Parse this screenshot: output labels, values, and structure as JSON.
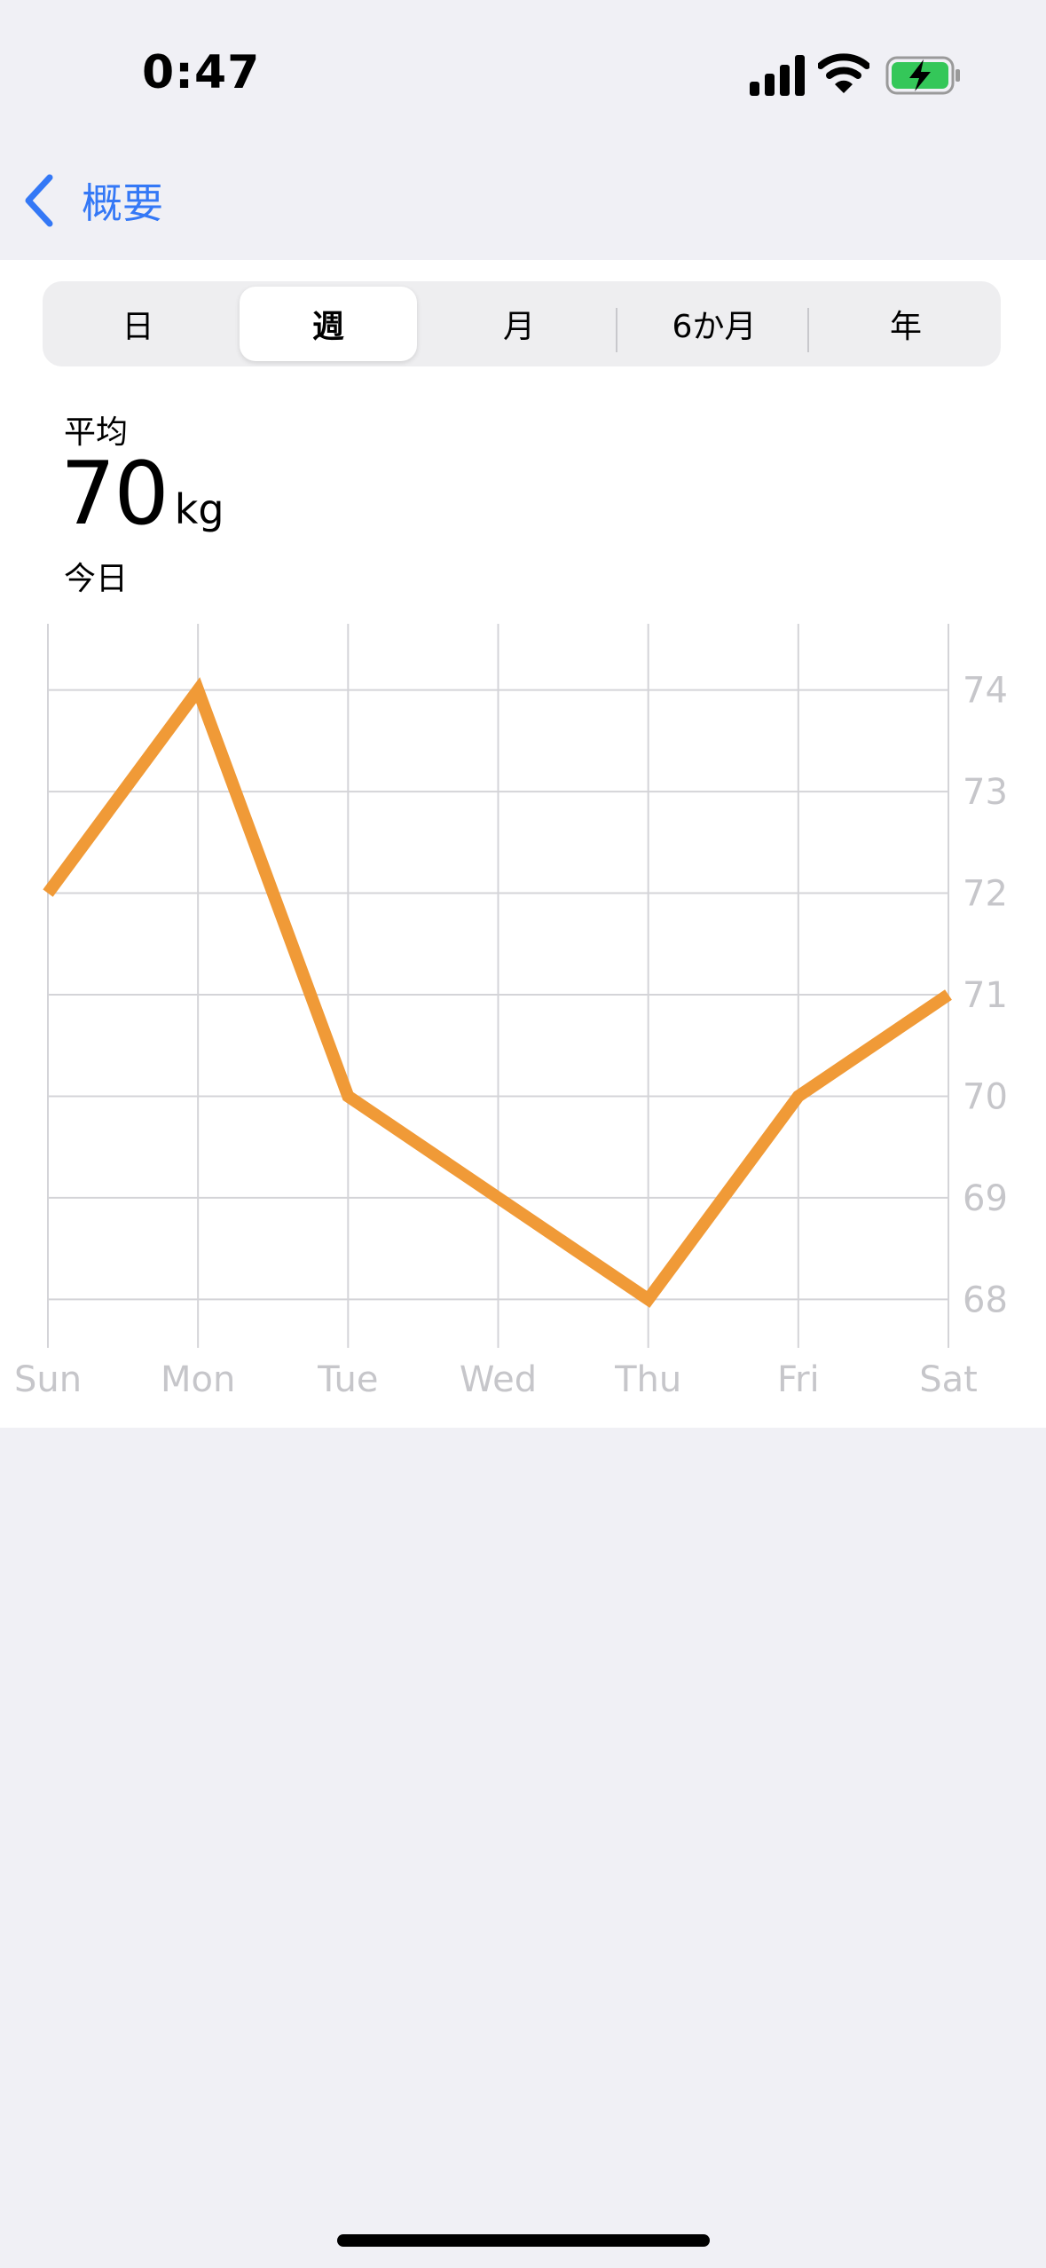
{
  "status_bar": {
    "time": "0:47",
    "signal_icon": "cellular-signal-icon",
    "wifi_icon": "wifi-icon",
    "battery_icon": "battery-charging-icon",
    "battery_color": "#34C759"
  },
  "nav": {
    "back_label": "概要",
    "accent": "#3478F6"
  },
  "segments": [
    {
      "label": "日",
      "selected": false
    },
    {
      "label": "週",
      "selected": true
    },
    {
      "label": "月",
      "selected": false
    },
    {
      "label": "6か月",
      "selected": false
    },
    {
      "label": "年",
      "selected": false
    }
  ],
  "summary": {
    "label": "平均",
    "value": "70",
    "unit": "kg",
    "date": "今日"
  },
  "chart_data": {
    "type": "line",
    "categories": [
      "Sun",
      "Mon",
      "Tue",
      "Wed",
      "Thu",
      "Fri",
      "Sat"
    ],
    "series": [
      {
        "color": "#F09A37",
        "values": [
          72,
          74,
          70,
          69,
          68,
          70,
          71
        ]
      }
    ],
    "y_ticks": [
      "74",
      "73",
      "72",
      "71",
      "70",
      "69",
      "68"
    ],
    "ylim": [
      67.4,
      74.6
    ],
    "y_axis_position": "right",
    "grid": true,
    "title": "",
    "xlabel": "",
    "ylabel": ""
  }
}
